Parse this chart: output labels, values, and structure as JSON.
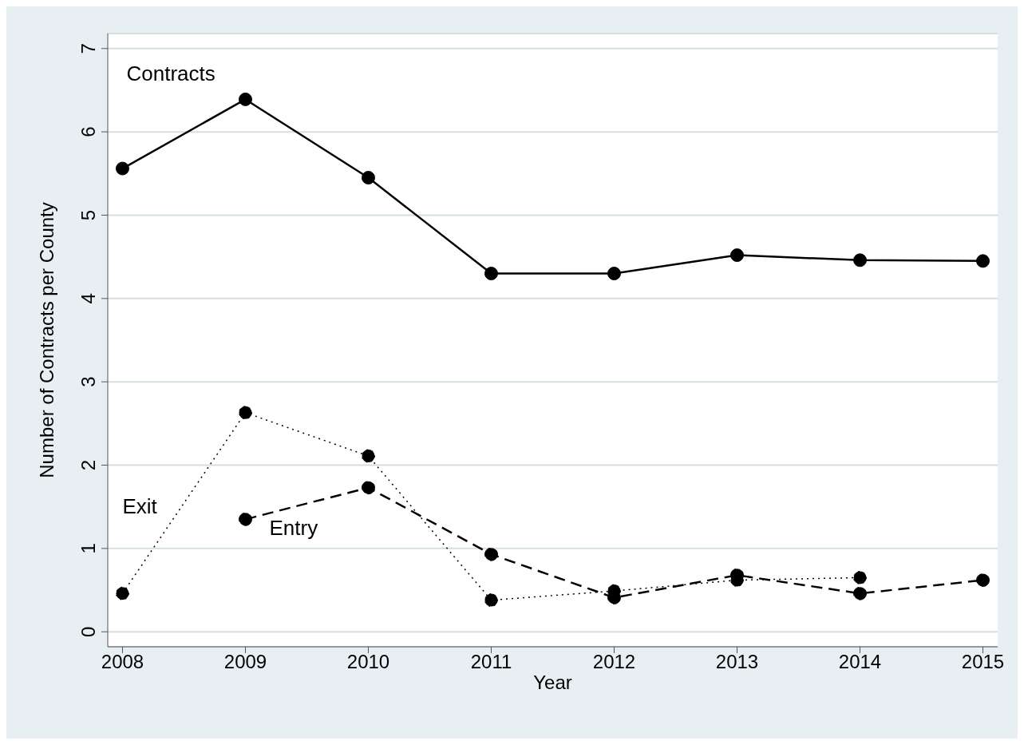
{
  "chart_data": {
    "type": "line",
    "xlabel": "Year",
    "ylabel": "Number of Contracts per County",
    "x": [
      2008,
      2009,
      2010,
      2011,
      2012,
      2013,
      2014,
      2015
    ],
    "series": [
      {
        "name": "Contracts",
        "color": "#000000",
        "line_style": "solid",
        "values": [
          5.56,
          6.39,
          5.45,
          4.3,
          4.3,
          4.52,
          4.46,
          4.45
        ]
      },
      {
        "name": "Exit",
        "color": "#000000",
        "line_style": "dotted",
        "values": [
          0.46,
          2.63,
          2.11,
          0.38,
          0.49,
          0.62,
          0.65,
          null
        ]
      },
      {
        "name": "Entry",
        "color": "#000000",
        "line_style": "dashed",
        "values": [
          null,
          1.35,
          1.73,
          0.93,
          0.41,
          0.68,
          0.46,
          0.62
        ]
      }
    ],
    "xlim": [
      2007.88,
      2015.12
    ],
    "xticks": [
      2008,
      2009,
      2010,
      2011,
      2012,
      2013,
      2014,
      2015
    ],
    "ylim": [
      -0.18,
      7.18
    ],
    "yticks": [
      0,
      1,
      2,
      3,
      4,
      5,
      6,
      7
    ],
    "grid": "y",
    "legend": false,
    "marker": "circle"
  }
}
